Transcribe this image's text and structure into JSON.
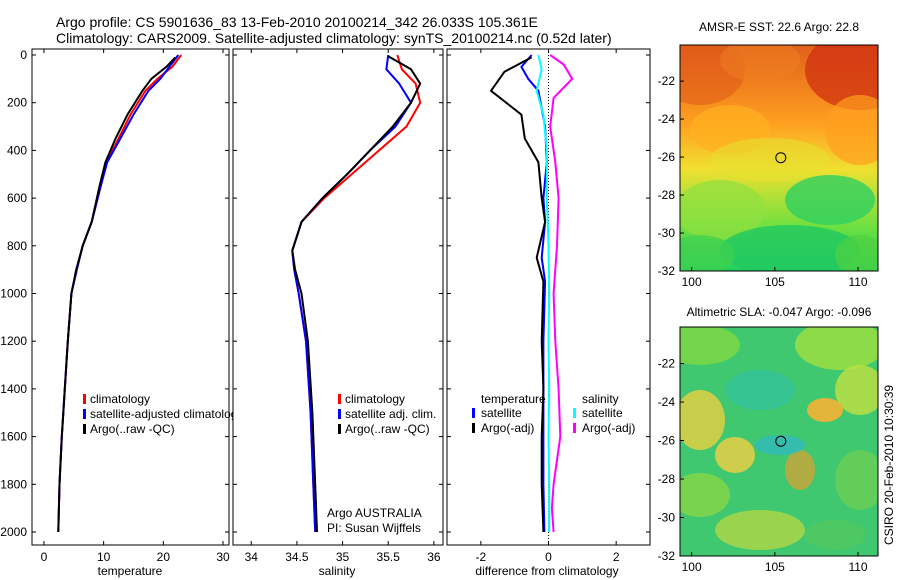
{
  "header": {
    "line1": "Argo profile: CS 5901636_83 13-Feb-2010 20100214_342 26.033S 105.361E",
    "line2": "Climatology: CARS2009. Satellite-adjusted climatology: synTS_20100214.nc (0.52d later)"
  },
  "side_label": "CSIRO 20-Feb-2010 10:30:39",
  "colors": {
    "climatology": "#ff0000",
    "satellite": "#0000ff",
    "argo": "#000000",
    "salinity_satellite": "#00ffff",
    "salinity_argo": "#ff00ff"
  },
  "chart_data": [
    {
      "id": "temperature",
      "type": "line",
      "xlabel": "temperature",
      "ylabel": "",
      "xlim": [
        -2,
        31
      ],
      "ylim": [
        2050,
        0
      ],
      "xticks": [
        0,
        10,
        20,
        30
      ],
      "xtick_labels": [
        "0",
        "10",
        "20",
        "30"
      ],
      "yticks": [
        0,
        200,
        400,
        600,
        800,
        1000,
        1200,
        1400,
        1600,
        1800,
        2000
      ],
      "ytick_labels": [
        "0",
        "200",
        "400",
        "600",
        "800",
        "1000",
        "1200",
        "1400",
        "1600",
        "1800",
        "2000"
      ],
      "legend": [
        "climatology",
        "satellite-adjusted climatolog",
        "Argo(..raw -QC)"
      ],
      "legend_placement": "bottom-center",
      "series": [
        {
          "name": "climatology",
          "color": "#ff0000",
          "x": [
            23,
            21.5,
            19,
            17,
            14.5,
            12.5,
            10.5,
            9.5,
            8,
            6.5,
            5.5,
            4.6,
            4.0,
            3.5,
            3.0,
            2.6,
            2.4
          ],
          "y": [
            0,
            50,
            100,
            150,
            250,
            350,
            450,
            550,
            700,
            800,
            900,
            1000,
            1200,
            1400,
            1600,
            1800,
            2000
          ]
        },
        {
          "name": "satellite-adjusted climatology",
          "color": "#0000ff",
          "x": [
            22.5,
            21,
            19.5,
            17.5,
            15,
            12.8,
            10.6,
            9.5,
            8,
            6.5,
            5.5,
            4.6,
            4.0,
            3.5,
            3.0,
            2.6,
            2.4
          ],
          "y": [
            0,
            50,
            100,
            150,
            250,
            350,
            450,
            550,
            700,
            800,
            900,
            1000,
            1200,
            1400,
            1600,
            1800,
            2000
          ]
        },
        {
          "name": "Argo(..raw -QC)",
          "color": "#000000",
          "x": [
            22,
            20.5,
            18,
            16.5,
            14,
            12,
            10.3,
            9.3,
            8,
            6.5,
            5.4,
            4.6,
            4.0,
            3.5,
            3.0,
            2.6,
            2.4
          ],
          "y": [
            10,
            50,
            100,
            150,
            250,
            350,
            450,
            550,
            700,
            800,
            900,
            1000,
            1200,
            1400,
            1600,
            1800,
            2000
          ]
        }
      ]
    },
    {
      "id": "salinity",
      "type": "line",
      "xlabel": "salinity",
      "xlim": [
        33.8,
        36.1
      ],
      "ylim": [
        2050,
        0
      ],
      "xticks": [
        34,
        34.5,
        35,
        35.5,
        36
      ],
      "xtick_labels": [
        "34",
        "34.5",
        "35",
        "35.5",
        "36"
      ],
      "legend": [
        "climatology",
        "satellite adj. clim.",
        "Argo(..raw -QC)"
      ],
      "legend_placement": "bottom-right",
      "annotations": [
        "Argo AUSTRALIA",
        "PI: Susan Wijffels"
      ],
      "series": [
        {
          "name": "climatology",
          "color": "#ff0000",
          "x": [
            35.6,
            35.65,
            35.8,
            35.85,
            35.7,
            35.4,
            35.1,
            34.8,
            34.55,
            34.45,
            34.47,
            34.52,
            34.6,
            34.65,
            34.68,
            34.7
          ],
          "y": [
            0,
            60,
            120,
            200,
            300,
            400,
            500,
            600,
            700,
            820,
            900,
            1000,
            1200,
            1500,
            1800,
            2000
          ]
        },
        {
          "name": "satellite adj. clim.",
          "color": "#0000ff",
          "x": [
            35.5,
            35.48,
            35.62,
            35.75,
            35.58,
            35.3,
            35.05,
            34.78,
            34.55,
            34.45,
            34.47,
            34.52,
            34.6,
            34.65,
            34.68,
            34.7
          ],
          "y": [
            0,
            60,
            120,
            200,
            300,
            400,
            500,
            600,
            700,
            820,
            900,
            1000,
            1200,
            1500,
            1800,
            2000
          ]
        },
        {
          "name": "Argo(..raw -QC)",
          "color": "#000000",
          "x": [
            35.5,
            35.75,
            35.85,
            35.75,
            35.55,
            35.3,
            35.05,
            34.78,
            34.55,
            34.45,
            34.48,
            34.55,
            34.62,
            34.67,
            34.7,
            34.72
          ],
          "y": [
            5,
            60,
            120,
            200,
            300,
            400,
            500,
            600,
            700,
            820,
            900,
            1000,
            1200,
            1500,
            1800,
            2000
          ]
        }
      ]
    },
    {
      "id": "difference",
      "type": "line",
      "xlabel": "difference from climatology",
      "xlim": [
        -3,
        3
      ],
      "ylim": [
        2050,
        0
      ],
      "xticks": [
        -2,
        0,
        2
      ],
      "xtick_labels": [
        "-2",
        "0",
        "2"
      ],
      "legend_groups": [
        {
          "title": "temperature",
          "items": [
            "satellite",
            "Argo(-adj)"
          ]
        },
        {
          "title": "salinity",
          "items": [
            "satellite",
            "Argo(-adj)"
          ]
        }
      ],
      "legend_placement": "bottom",
      "series": [
        {
          "name": "temperature satellite",
          "color": "#0000ff",
          "x": [
            -0.5,
            -0.8,
            -0.6,
            -0.3,
            -0.1,
            -0.05,
            -0.15,
            -0.1,
            -0.2,
            -0.1,
            -0.15,
            -0.15,
            -0.15,
            -0.15,
            -0.12
          ],
          "y": [
            0,
            50,
            100,
            150,
            300,
            450,
            600,
            700,
            850,
            950,
            1200,
            1400,
            1600,
            1800,
            2000
          ]
        },
        {
          "name": "temperature Argo(-adj)",
          "color": "#000000",
          "x": [
            -0.5,
            -1.3,
            -1.7,
            -0.8,
            -0.7,
            -0.3,
            -0.2,
            -0.1,
            -0.35,
            -0.15,
            -0.2,
            -0.15,
            -0.2,
            -0.2,
            -0.15
          ],
          "y": [
            10,
            70,
            150,
            250,
            350,
            450,
            600,
            700,
            850,
            950,
            1200,
            1400,
            1600,
            1800,
            2000
          ]
        },
        {
          "name": "salinity satellite",
          "color": "#00ffff",
          "x": [
            -0.3,
            -0.2,
            -0.35,
            -0.15,
            -0.05,
            -0.05,
            0,
            0.02,
            0,
            0.02,
            0,
            0.02,
            0.02,
            0.02
          ],
          "y": [
            0,
            60,
            150,
            250,
            400,
            600,
            800,
            1000,
            1200,
            1400,
            1600,
            1800,
            1950,
            2000
          ]
        },
        {
          "name": "salinity Argo(-adj)",
          "color": "#ff00ff",
          "x": [
            0.05,
            0.45,
            0.7,
            0.15,
            0.05,
            0.2,
            0.3,
            0.25,
            0.15,
            0.2,
            0.3,
            0.35,
            0.15,
            0.1,
            0.15
          ],
          "y": [
            0,
            40,
            100,
            180,
            300,
            450,
            600,
            800,
            1000,
            1200,
            1400,
            1600,
            1800,
            1900,
            2000
          ]
        }
      ]
    },
    {
      "id": "sst-map",
      "type": "heatmap",
      "title": "AMSR-E SST: 22.6 Argo: 22.8",
      "xlim": [
        99.3,
        111.2
      ],
      "ylim": [
        -32,
        -20.1
      ],
      "xticks": [
        100,
        105,
        110
      ],
      "xtick_labels": [
        "100",
        "105",
        "110"
      ],
      "yticks": [
        -22,
        -24,
        -26,
        -28,
        -30,
        -32
      ],
      "ytick_labels": [
        "-22",
        "-24",
        "-26",
        "-28",
        "-30",
        "-32"
      ],
      "marker": {
        "lon": 105.361,
        "lat": -26.033
      }
    },
    {
      "id": "sla-map",
      "type": "heatmap",
      "title": "Altimetric SLA: -0.047 Argo: -0.096",
      "xlim": [
        99.3,
        111.2
      ],
      "ylim": [
        -32,
        -20.1
      ],
      "xticks": [
        100,
        105,
        110
      ],
      "xtick_labels": [
        "100",
        "105",
        "110"
      ],
      "yticks": [
        -22,
        -24,
        -26,
        -28,
        -30,
        -32
      ],
      "ytick_labels": [
        "-22",
        "-24",
        "-26",
        "-28",
        "-30",
        "-32"
      ],
      "marker": {
        "lon": 105.361,
        "lat": -26.033
      }
    }
  ]
}
